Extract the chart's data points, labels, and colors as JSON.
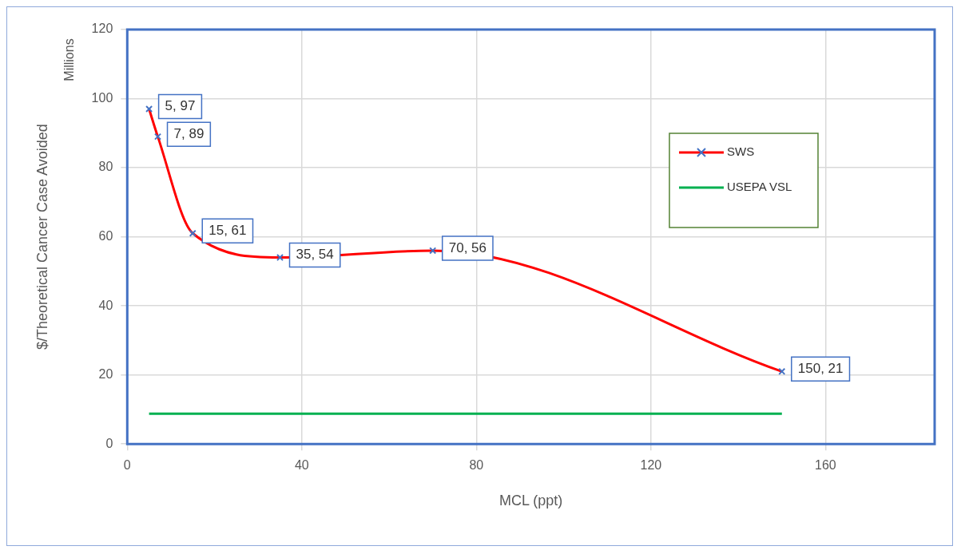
{
  "chart_data": {
    "type": "line",
    "xlabel": "MCL (ppt)",
    "ylabel": "$/Theoretical Cancer Case Avoided",
    "annotations": [
      "Millions"
    ],
    "series": [
      {
        "name": "SWS",
        "color": "#ff0000",
        "x": [
          5,
          7,
          15,
          35,
          70,
          150
        ],
        "values": [
          97,
          89,
          61,
          54,
          56,
          21
        ],
        "marker": "cross",
        "value_labels": [
          "5, 97",
          "7, 89",
          "15, 61",
          "35, 54",
          "70, 56",
          "150, 21"
        ]
      },
      {
        "name": "USEPA VSL",
        "color": "#00b050",
        "x": [
          5,
          150
        ],
        "values": [
          8.8,
          8.8
        ],
        "marker": "none"
      }
    ],
    "xlim": [
      0,
      185
    ],
    "xticks": [
      0,
      40,
      80,
      120,
      160
    ],
    "ylim": [
      0,
      120
    ],
    "yticks": [
      0,
      20,
      40,
      60,
      80,
      100,
      120
    ],
    "grid": true,
    "legend": "top right"
  }
}
